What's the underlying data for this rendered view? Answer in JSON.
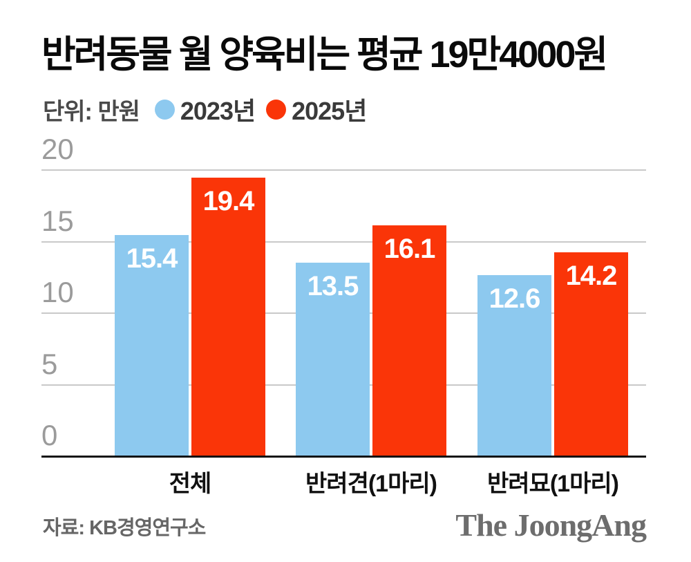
{
  "title": "반려동물 월 양육비는 평균 19만4000원",
  "unit_label": "단위: 만원",
  "source": "자료: KB경영연구소",
  "logo_text": "The JoongAng",
  "colors": {
    "series_2023": "#8dc9ef",
    "series_2025": "#fa3508",
    "gridline": "#c9c9c9",
    "axis_text": "#9b9b9b",
    "baseline": "#111111"
  },
  "chart_data": {
    "type": "bar",
    "title": "반려동물 월 양육비는 평균 19만4000원",
    "unit": "만원",
    "categories": [
      "전체",
      "반려견(1마리)",
      "반려묘(1마리)"
    ],
    "series": [
      {
        "name": "2023년",
        "color": "#8dc9ef",
        "values": [
          15.4,
          13.5,
          12.6
        ]
      },
      {
        "name": "2025년",
        "color": "#fa3508",
        "values": [
          19.4,
          16.1,
          14.2
        ]
      }
    ],
    "ylim": [
      0,
      20
    ],
    "yticks": [
      0,
      5,
      10,
      15,
      20
    ],
    "grid": true,
    "legend_position": "top",
    "value_labels": true,
    "source": "자료: KB경영연구소"
  }
}
